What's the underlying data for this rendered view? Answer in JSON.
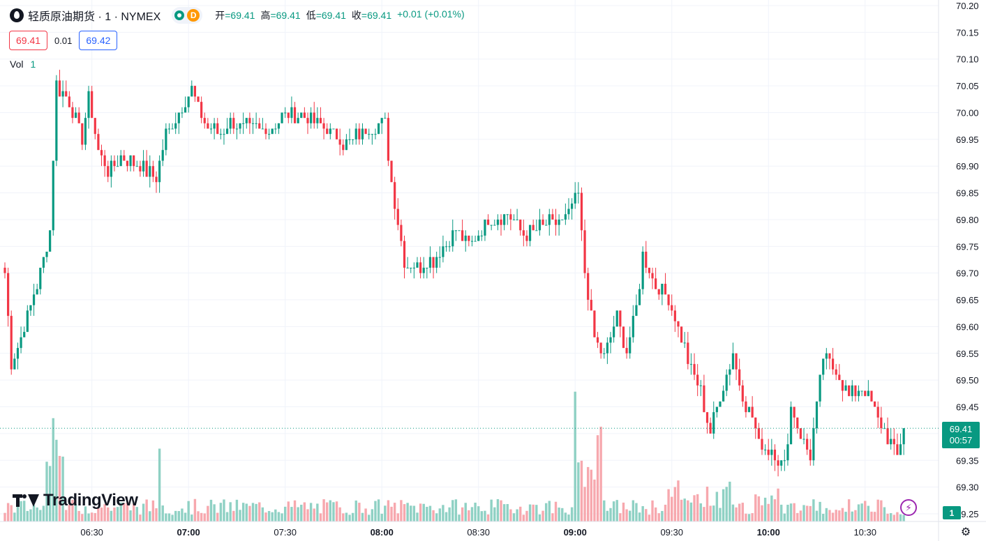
{
  "header": {
    "symbol_title": "轻质原油期货 · 1 · NYMEX",
    "interval_badge": "D",
    "ohlc": [
      {
        "label": "开",
        "value": "=69.41"
      },
      {
        "label": "高",
        "value": "=69.41"
      },
      {
        "label": "低",
        "value": "=69.41"
      },
      {
        "label": "收",
        "value": "=69.41"
      }
    ],
    "change": "+0.01 (+0.01%)"
  },
  "quote": {
    "bid": "69.41",
    "spread": "0.01",
    "ask": "69.42"
  },
  "volume_legend": {
    "label": "Vol",
    "value": "1"
  },
  "logo_text": "TradingView",
  "price_tag": {
    "price": "69.41",
    "countdown": "00:57"
  },
  "volume_tag": "1",
  "colors": {
    "up": "#089981",
    "down": "#f23645",
    "up_volume": "#8fd1c4",
    "down_volume": "#f7a8ae",
    "grid": "#f0f3fa"
  },
  "icons": {
    "settings": "gear-icon",
    "alert": "lightning-icon",
    "market_status": "market-open-icon"
  },
  "chart_data": {
    "type": "candlestick",
    "interval": "1 minute",
    "ylim": [
      69.25,
      70.2
    ],
    "y_ticks": [
      "70.20",
      "70.15",
      "70.10",
      "70.05",
      "70.00",
      "69.95",
      "69.90",
      "69.85",
      "69.80",
      "69.75",
      "69.70",
      "69.65",
      "69.60",
      "69.55",
      "69.50",
      "69.45",
      "69.40",
      "69.35",
      "69.30",
      "69.25"
    ],
    "x_ticks": [
      {
        "label": "06:30",
        "index": 27,
        "bold": false
      },
      {
        "label": "07:00",
        "index": 57,
        "bold": true
      },
      {
        "label": "07:30",
        "index": 87,
        "bold": false
      },
      {
        "label": "08:00",
        "index": 117,
        "bold": true
      },
      {
        "label": "08:30",
        "index": 147,
        "bold": false
      },
      {
        "label": "09:00",
        "index": 177,
        "bold": true
      },
      {
        "label": "09:30",
        "index": 207,
        "bold": false
      },
      {
        "label": "10:00",
        "index": 237,
        "bold": true
      },
      {
        "label": "10:30",
        "index": 267,
        "bold": false
      }
    ],
    "last_price": 69.41,
    "waypoints": [
      [
        0,
        69.7
      ],
      [
        2,
        69.53
      ],
      [
        5,
        69.58
      ],
      [
        10,
        69.68
      ],
      [
        14,
        69.78
      ],
      [
        16,
        70.05
      ],
      [
        20,
        70.02
      ],
      [
        24,
        69.95
      ],
      [
        26,
        70.03
      ],
      [
        29,
        69.93
      ],
      [
        32,
        69.89
      ],
      [
        36,
        69.92
      ],
      [
        42,
        69.9
      ],
      [
        47,
        69.88
      ],
      [
        50,
        69.96
      ],
      [
        54,
        70.0
      ],
      [
        58,
        70.04
      ],
      [
        62,
        69.98
      ],
      [
        66,
        69.96
      ],
      [
        70,
        69.98
      ],
      [
        76,
        69.97
      ],
      [
        82,
        69.97
      ],
      [
        88,
        70.0
      ],
      [
        94,
        69.99
      ],
      [
        100,
        69.97
      ],
      [
        106,
        69.94
      ],
      [
        112,
        69.97
      ],
      [
        118,
        69.98
      ],
      [
        120,
        69.87
      ],
      [
        124,
        69.72
      ],
      [
        128,
        69.71
      ],
      [
        134,
        69.73
      ],
      [
        140,
        69.78
      ],
      [
        144,
        69.75
      ],
      [
        150,
        69.8
      ],
      [
        156,
        69.81
      ],
      [
        162,
        69.77
      ],
      [
        168,
        69.79
      ],
      [
        174,
        69.8
      ],
      [
        178,
        69.85
      ],
      [
        180,
        69.7
      ],
      [
        183,
        69.58
      ],
      [
        186,
        69.54
      ],
      [
        190,
        69.62
      ],
      [
        193,
        69.55
      ],
      [
        196,
        69.64
      ],
      [
        198,
        69.73
      ],
      [
        202,
        69.68
      ],
      [
        206,
        69.65
      ],
      [
        210,
        69.58
      ],
      [
        213,
        69.52
      ],
      [
        216,
        69.48
      ],
      [
        219,
        69.4
      ],
      [
        222,
        69.47
      ],
      [
        226,
        69.55
      ],
      [
        229,
        69.47
      ],
      [
        232,
        69.43
      ],
      [
        234,
        69.38
      ],
      [
        238,
        69.37
      ],
      [
        242,
        69.34
      ],
      [
        244,
        69.45
      ],
      [
        247,
        69.4
      ],
      [
        250,
        69.36
      ],
      [
        254,
        69.54
      ],
      [
        258,
        69.52
      ],
      [
        262,
        69.47
      ],
      [
        266,
        69.49
      ],
      [
        270,
        69.44
      ],
      [
        274,
        69.39
      ],
      [
        277,
        69.36
      ],
      [
        279,
        69.41
      ]
    ],
    "volume_notes": "Volume histogram along the bottom; spikes near 06:15 and 09:00 (largest), light activity elsewhere; latest volume 1."
  }
}
